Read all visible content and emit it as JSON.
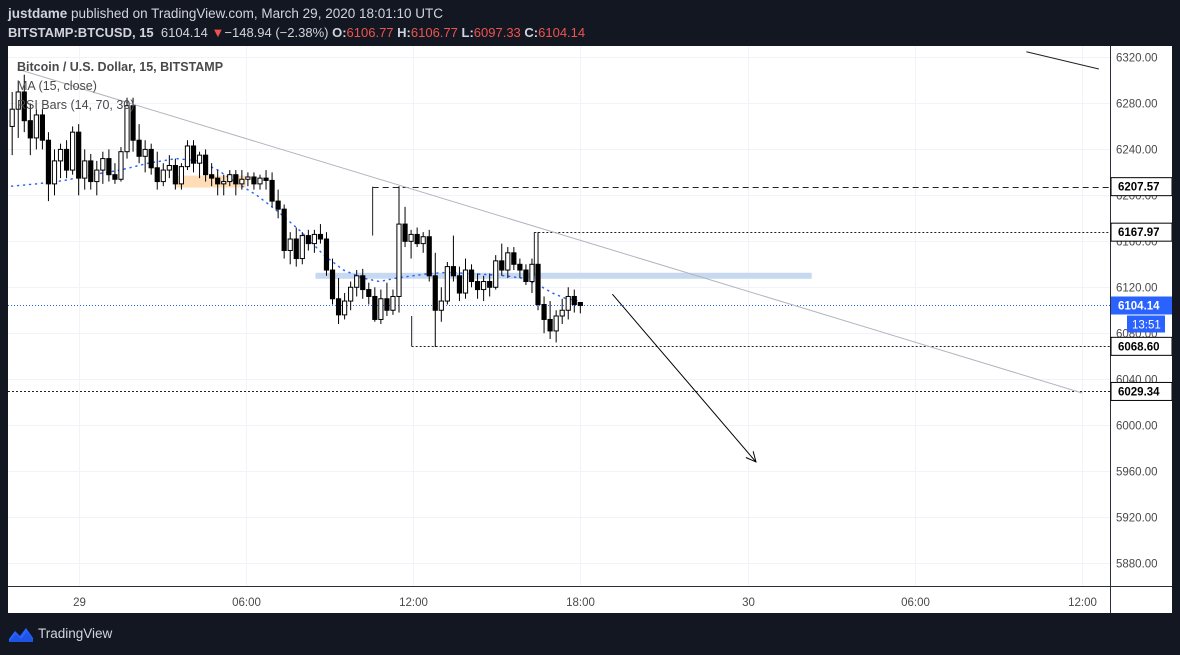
{
  "header": {
    "author": "justdame",
    "published_text": "published on TradingView.com, March 29, 2020 18:01:10 UTC",
    "symbol": "BITSTAMP:BTCUSD, 15",
    "last": "6104.14",
    "change_arrow": "▼",
    "change": "−148.94 (−2.38%)",
    "o_label": "O:",
    "o_value": "6106.77",
    "h_label": "H:",
    "h_value": "6106.77",
    "l_label": "L:",
    "l_value": "6097.33",
    "c_label": "C:",
    "c_value": "6104.14"
  },
  "legend": {
    "title": "Bitcoin / U.S. Dollar, 15, BITSTAMP",
    "ma": "MA (15, close)",
    "rsi": "RSI Bars (14, 70, 30)"
  },
  "footer": {
    "brand": "TradingView"
  },
  "chart_data": {
    "type": "candlestick",
    "symbol": "BITSTAMP:BTCUSD",
    "interval": "15",
    "ylim": [
      5860,
      6330
    ],
    "x_range_hours": [
      -2.53,
      37.0
    ],
    "y_ticks": [
      5880,
      5920,
      5960,
      6000,
      6040,
      6080,
      6120,
      6160,
      6200,
      6240,
      6280,
      6320
    ],
    "y_tick_labels": [
      "5880.00",
      "5920.00",
      "5960.00",
      "6000.00",
      "6040.00",
      "6080.00",
      "6120.00",
      "6160.00",
      "6200.00",
      "6240.00",
      "6280.00",
      "6320.00"
    ],
    "x_ticks": [
      {
        "h": 0,
        "label": "29"
      },
      {
        "h": 6,
        "label": "06:00"
      },
      {
        "h": 12,
        "label": "12:00"
      },
      {
        "h": 18,
        "label": "18:00"
      },
      {
        "h": 24,
        "label": "30"
      },
      {
        "h": 30,
        "label": "06:00"
      },
      {
        "h": 36,
        "label": "12:00"
      }
    ],
    "candles": [
      {
        "o": 6260,
        "h": 6290,
        "l": 6235,
        "c": 6275
      },
      {
        "o": 6275,
        "h": 6300,
        "l": 6250,
        "c": 6290
      },
      {
        "o": 6290,
        "h": 6305,
        "l": 6255,
        "c": 6265
      },
      {
        "o": 6265,
        "h": 6280,
        "l": 6235,
        "c": 6250
      },
      {
        "o": 6250,
        "h": 6275,
        "l": 6240,
        "c": 6270
      },
      {
        "o": 6270,
        "h": 6275,
        "l": 6240,
        "c": 6248
      },
      {
        "o": 6248,
        "h": 6255,
        "l": 6195,
        "c": 6210
      },
      {
        "o": 6210,
        "h": 6240,
        "l": 6200,
        "c": 6230
      },
      {
        "o": 6230,
        "h": 6245,
        "l": 6215,
        "c": 6240
      },
      {
        "o": 6240,
        "h": 6248,
        "l": 6215,
        "c": 6222
      },
      {
        "o": 6222,
        "h": 6260,
        "l": 6218,
        "c": 6255
      },
      {
        "o": 6255,
        "h": 6262,
        "l": 6200,
        "c": 6215
      },
      {
        "o": 6215,
        "h": 6240,
        "l": 6205,
        "c": 6230
      },
      {
        "o": 6230,
        "h": 6236,
        "l": 6205,
        "c": 6212
      },
      {
        "o": 6212,
        "h": 6230,
        "l": 6200,
        "c": 6222
      },
      {
        "o": 6222,
        "h": 6238,
        "l": 6210,
        "c": 6232
      },
      {
        "o": 6232,
        "h": 6240,
        "l": 6212,
        "c": 6218
      },
      {
        "o": 6218,
        "h": 6228,
        "l": 6210,
        "c": 6214
      },
      {
        "o": 6214,
        "h": 6242,
        "l": 6212,
        "c": 6238
      },
      {
        "o": 6238,
        "h": 6285,
        "l": 6232,
        "c": 6278
      },
      {
        "o": 6278,
        "h": 6285,
        "l": 6238,
        "c": 6248
      },
      {
        "o": 6248,
        "h": 6262,
        "l": 6228,
        "c": 6234
      },
      {
        "o": 6234,
        "h": 6248,
        "l": 6220,
        "c": 6240
      },
      {
        "o": 6240,
        "h": 6245,
        "l": 6218,
        "c": 6224
      },
      {
        "o": 6224,
        "h": 6238,
        "l": 6205,
        "c": 6212
      },
      {
        "o": 6212,
        "h": 6228,
        "l": 6208,
        "c": 6222
      },
      {
        "o": 6222,
        "h": 6235,
        "l": 6215,
        "c": 6226
      },
      {
        "o": 6226,
        "h": 6232,
        "l": 6205,
        "c": 6210
      },
      {
        "o": 6210,
        "h": 6228,
        "l": 6205,
        "c": 6225
      },
      {
        "o": 6225,
        "h": 6248,
        "l": 6222,
        "c": 6243
      },
      {
        "o": 6243,
        "h": 6248,
        "l": 6220,
        "c": 6228
      },
      {
        "o": 6228,
        "h": 6238,
        "l": 6215,
        "c": 6235
      },
      {
        "o": 6235,
        "h": 6240,
        "l": 6212,
        "c": 6218
      },
      {
        "o": 6218,
        "h": 6228,
        "l": 6208,
        "c": 6215
      },
      {
        "o": 6215,
        "h": 6222,
        "l": 6200,
        "c": 6210
      },
      {
        "o": 6210,
        "h": 6218,
        "l": 6200,
        "c": 6212
      },
      {
        "o": 6212,
        "h": 6222,
        "l": 6208,
        "c": 6218
      },
      {
        "o": 6218,
        "h": 6222,
        "l": 6200,
        "c": 6210
      },
      {
        "o": 6210,
        "h": 6222,
        "l": 6205,
        "c": 6214
      },
      {
        "o": 6214,
        "h": 6220,
        "l": 6208,
        "c": 6216
      },
      {
        "o": 6216,
        "h": 6220,
        "l": 6205,
        "c": 6210
      },
      {
        "o": 6210,
        "h": 6218,
        "l": 6205,
        "c": 6215
      },
      {
        "o": 6215,
        "h": 6222,
        "l": 6205,
        "c": 6213
      },
      {
        "o": 6213,
        "h": 6220,
        "l": 6190,
        "c": 6195
      },
      {
        "o": 6195,
        "h": 6205,
        "l": 6180,
        "c": 6188
      },
      {
        "o": 6188,
        "h": 6192,
        "l": 6145,
        "c": 6152
      },
      {
        "o": 6152,
        "h": 6168,
        "l": 6140,
        "c": 6162
      },
      {
        "o": 6162,
        "h": 6172,
        "l": 6138,
        "c": 6145
      },
      {
        "o": 6145,
        "h": 6168,
        "l": 6140,
        "c": 6165
      },
      {
        "o": 6165,
        "h": 6170,
        "l": 6152,
        "c": 6158
      },
      {
        "o": 6158,
        "h": 6170,
        "l": 6150,
        "c": 6166
      },
      {
        "o": 6166,
        "h": 6175,
        "l": 6158,
        "c": 6162
      },
      {
        "o": 6162,
        "h": 6168,
        "l": 6130,
        "c": 6135
      },
      {
        "o": 6135,
        "h": 6145,
        "l": 6105,
        "c": 6110
      },
      {
        "o": 6110,
        "h": 6128,
        "l": 6088,
        "c": 6096
      },
      {
        "o": 6096,
        "h": 6115,
        "l": 6092,
        "c": 6108
      },
      {
        "o": 6108,
        "h": 6125,
        "l": 6100,
        "c": 6120
      },
      {
        "o": 6120,
        "h": 6135,
        "l": 6112,
        "c": 6130
      },
      {
        "o": 6130,
        "h": 6136,
        "l": 6110,
        "c": 6118
      },
      {
        "o": 6118,
        "h": 6124,
        "l": 6105,
        "c": 6112
      },
      {
        "o": 6112,
        "h": 6120,
        "l": 6090,
        "c": 6092
      },
      {
        "o": 6092,
        "h": 6118,
        "l": 6088,
        "c": 6110
      },
      {
        "o": 6110,
        "h": 6124,
        "l": 6095,
        "c": 6100
      },
      {
        "o": 6100,
        "h": 6118,
        "l": 6096,
        "c": 6112
      },
      {
        "o": 6112,
        "h": 6208,
        "l": 6098,
        "c": 6175
      },
      {
        "o": 6175,
        "h": 6190,
        "l": 6155,
        "c": 6160
      },
      {
        "o": 6160,
        "h": 6170,
        "l": 6145,
        "c": 6166
      },
      {
        "o": 6166,
        "h": 6172,
        "l": 6155,
        "c": 6158
      },
      {
        "o": 6158,
        "h": 6168,
        "l": 6150,
        "c": 6164
      },
      {
        "o": 6164,
        "h": 6170,
        "l": 6125,
        "c": 6130
      },
      {
        "o": 6130,
        "h": 6150,
        "l": 6068,
        "c": 6100
      },
      {
        "o": 6100,
        "h": 6120,
        "l": 6090,
        "c": 6108
      },
      {
        "o": 6108,
        "h": 6142,
        "l": 6105,
        "c": 6138
      },
      {
        "o": 6138,
        "h": 6165,
        "l": 6125,
        "c": 6130
      },
      {
        "o": 6130,
        "h": 6138,
        "l": 6108,
        "c": 6115
      },
      {
        "o": 6115,
        "h": 6145,
        "l": 6110,
        "c": 6135
      },
      {
        "o": 6135,
        "h": 6140,
        "l": 6120,
        "c": 6125
      },
      {
        "o": 6125,
        "h": 6132,
        "l": 6110,
        "c": 6118
      },
      {
        "o": 6118,
        "h": 6130,
        "l": 6108,
        "c": 6125
      },
      {
        "o": 6125,
        "h": 6132,
        "l": 6112,
        "c": 6120
      },
      {
        "o": 6120,
        "h": 6148,
        "l": 6118,
        "c": 6143
      },
      {
        "o": 6143,
        "h": 6158,
        "l": 6130,
        "c": 6135
      },
      {
        "o": 6135,
        "h": 6155,
        "l": 6128,
        "c": 6150
      },
      {
        "o": 6150,
        "h": 6155,
        "l": 6135,
        "c": 6140
      },
      {
        "o": 6140,
        "h": 6145,
        "l": 6128,
        "c": 6135
      },
      {
        "o": 6135,
        "h": 6140,
        "l": 6122,
        "c": 6125
      },
      {
        "o": 6125,
        "h": 6145,
        "l": 6115,
        "c": 6140
      },
      {
        "o": 6140,
        "h": 6168,
        "l": 6100,
        "c": 6105
      },
      {
        "o": 6105,
        "h": 6112,
        "l": 6080,
        "c": 6092
      },
      {
        "o": 6092,
        "h": 6108,
        "l": 6075,
        "c": 6082
      },
      {
        "o": 6082,
        "h": 6100,
        "l": 6072,
        "c": 6095
      },
      {
        "o": 6095,
        "h": 6110,
        "l": 6088,
        "c": 6100
      },
      {
        "o": 6100,
        "h": 6120,
        "l": 6092,
        "c": 6112
      },
      {
        "o": 6112,
        "h": 6118,
        "l": 6098,
        "c": 6105
      },
      {
        "o": 6106.77,
        "h": 6106.77,
        "l": 6097.33,
        "c": 6104.14
      }
    ],
    "ma_series_name": "MA (15, close)",
    "ma": [
      [
        -2.4,
        6208
      ],
      [
        -1.5,
        6210
      ],
      [
        -0.5,
        6213
      ],
      [
        0.5,
        6218
      ],
      [
        1.5,
        6222
      ],
      [
        2.5,
        6228
      ],
      [
        3.5,
        6232
      ],
      [
        4.3,
        6230
      ],
      [
        5.0,
        6222
      ],
      [
        5.6,
        6212
      ],
      [
        6.4,
        6200
      ],
      [
        7.2,
        6185
      ],
      [
        8.0,
        6168
      ],
      [
        8.8,
        6148
      ],
      [
        9.5,
        6135
      ],
      [
        10.2,
        6128
      ],
      [
        10.8,
        6125
      ],
      [
        11.4,
        6128
      ],
      [
        12.0,
        6130
      ],
      [
        12.6,
        6132
      ],
      [
        13.3,
        6133
      ],
      [
        14.0,
        6132
      ],
      [
        14.7,
        6131
      ],
      [
        15.3,
        6130
      ],
      [
        15.9,
        6128
      ],
      [
        16.5,
        6122
      ],
      [
        17.0,
        6115
      ],
      [
        17.5,
        6110
      ],
      [
        18.0,
        6108
      ]
    ],
    "rsi_highlight": {
      "h_from": 3.45,
      "h_to": 6.0,
      "price": 6212
    },
    "levels": [
      {
        "price": 6207.57,
        "label": "6207.57",
        "style": "dashed",
        "h_from": 10.55
      },
      {
        "price": 6167.97,
        "label": "6167.97",
        "style": "dotted",
        "h_from": 16.35
      },
      {
        "price": 6068.6,
        "label": "6068.60",
        "style": "dotted",
        "h_from": 11.95
      },
      {
        "price": 6029.34,
        "label": "6029.34",
        "style": "dotted",
        "h_from": -2.53
      }
    ],
    "last_price": {
      "price": 6104.14,
      "label": "6104.14",
      "countdown": "13:51"
    },
    "trendline": [
      [
        -2.2,
        6310
      ],
      [
        36.0,
        6028
      ]
    ],
    "trendline_top": [
      [
        34.0,
        6325
      ],
      [
        36.6,
        6310
      ]
    ],
    "zone": {
      "h_from": 8.5,
      "h_to": 26.3,
      "price": 6130
    },
    "arrow": {
      "from": [
        19.15,
        6114
      ],
      "to": [
        24.3,
        5968
      ]
    }
  }
}
